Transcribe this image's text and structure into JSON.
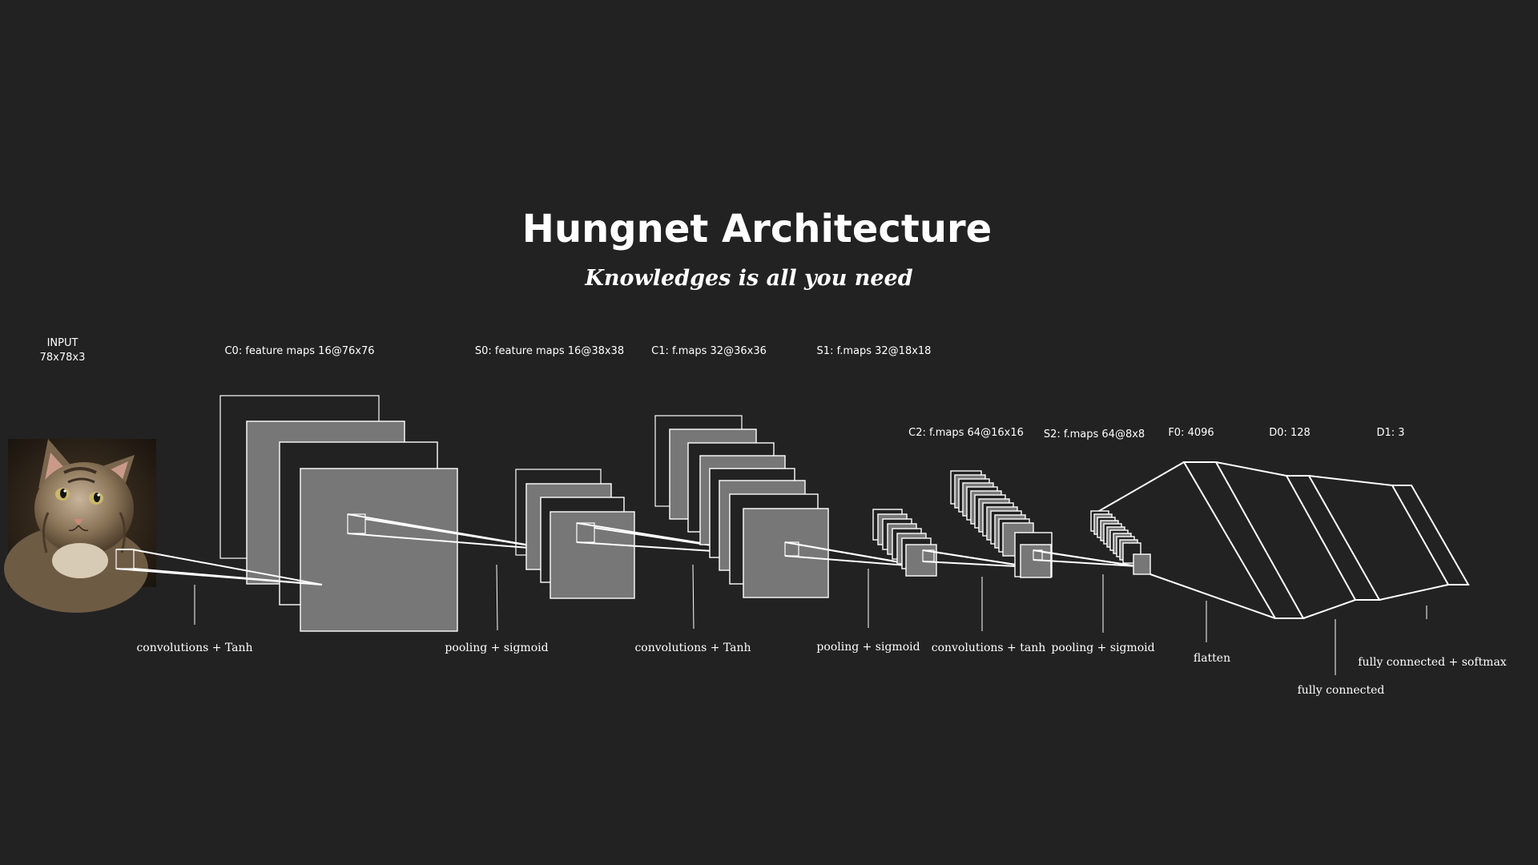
{
  "title": "Hungnet Architecture",
  "subtitle": "Knowledges is all you need",
  "input": {
    "line1": "INPUT",
    "line2": "78x78x3",
    "image": "cat-photo"
  },
  "layers": {
    "c0": "C0: feature maps 16@76x76",
    "s0": "S0: feature maps 16@38x38",
    "c1": "C1: f.maps 32@36x36",
    "s1": "S1: f.maps 32@18x18",
    "c2": "C2: f.maps 64@16x16",
    "s2": "S2: f.maps 64@8x8",
    "f0": "F0: 4096",
    "d0": "D0: 128",
    "d1": "D1: 3"
  },
  "operations": {
    "op1": "convolutions + Tanh",
    "op2": "pooling + sigmoid",
    "op3": "convolutions + Tanh",
    "op4": "pooling + sigmoid",
    "op5": "convolutions + tanh",
    "op6": "pooling + sigmoid",
    "op7": "flatten",
    "op8": "fully connected",
    "op9": "fully connected + softmax"
  },
  "colors": {
    "background": "#222222",
    "map_fill": "#777777",
    "stroke": "#ffffff"
  }
}
